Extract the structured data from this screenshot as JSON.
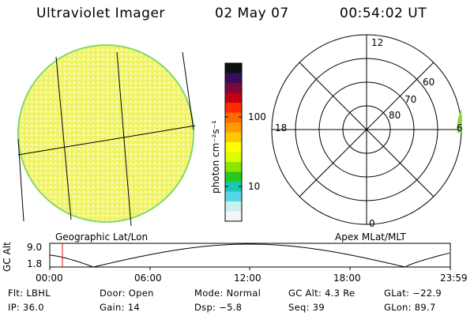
{
  "header": {
    "instrument": "Ultraviolet Imager",
    "date": "02 May 07",
    "time": "00:54:02 UT"
  },
  "colorbar": {
    "label": "photon cm⁻²s⁻¹",
    "ticks": [
      "100",
      "10"
    ],
    "colors": [
      "#101010",
      "#3a0c5c",
      "#7a0a3a",
      "#c40010",
      "#ff2a00",
      "#ff6a00",
      "#ff9a00",
      "#ffc800",
      "#ffff00",
      "#d8ff00",
      "#8ee600",
      "#27c820",
      "#1cc8b4",
      "#56d6e8",
      "#c8f0f0",
      "#f4f4f4"
    ]
  },
  "polar": {
    "mlt_labels": [
      "12",
      "18",
      "0",
      "6"
    ],
    "mlat_labels": [
      "80",
      "70",
      "60"
    ]
  },
  "labels": {
    "geo": "Geographic Lat/Lon",
    "apex": "Apex MLat/MLT"
  },
  "altitude_plot": {
    "ylabel": "GC Alt",
    "yticks": [
      "9.0",
      "1.8"
    ],
    "xticks": [
      "00:00",
      "06:00",
      "12:00",
      "18:00",
      "23:59"
    ]
  },
  "info": {
    "filter": "Flt: LBHL",
    "door": "Door: Open",
    "mode": "Mode: Normal",
    "gc_alt": "GC Alt: 4.3 Re",
    "glat": "GLat: −22.9",
    "ip": "IP: 36.0",
    "gain": "Gain: 14",
    "dsp": "Dsp:   −5.8",
    "seq": "Seq: 39",
    "glon": "GLon: 89.7"
  },
  "style": {
    "disc_base": "#f2f560",
    "disc_rim": "#8ad86a",
    "time_marker": "#d01010"
  }
}
